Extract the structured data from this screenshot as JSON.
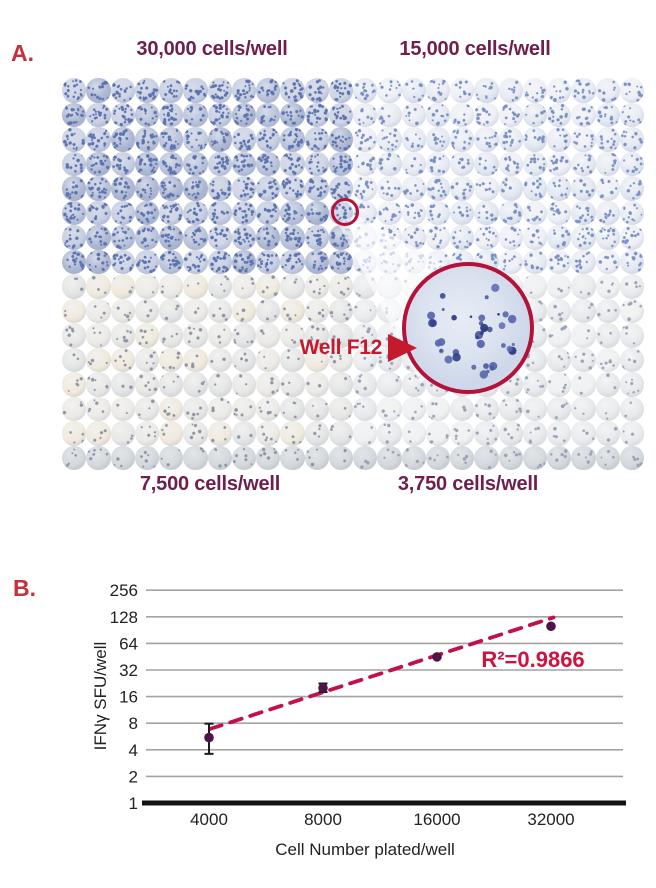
{
  "panel_a": {
    "label": "A.",
    "labels": {
      "top_left": "30,000 cells/well",
      "top_right": "15,000 cells/well",
      "bottom_left": "7,500 cells/well",
      "bottom_right": "3,750 cells/well"
    },
    "inset": {
      "label": "Well F12"
    },
    "plate": {
      "rows": 16,
      "cols": 24,
      "highlight_well": {
        "row_letter": "F",
        "col_number": 12
      },
      "quadrants": {
        "top_left": {
          "base": [
            "#c9d0e2",
            "#bac3da",
            "#d1d6e5",
            "#aeb8d2"
          ],
          "light": "#d6dcea",
          "edge": "#9fabcd",
          "speckle": "#5d73ae",
          "dots_min": 14,
          "dots_max": 22
        },
        "top_right": {
          "base": [
            "#e8ebf2",
            "#eef0f5",
            "#e3e8f1"
          ],
          "light": "#f3f5f9",
          "edge": "#c3cbde",
          "speckle": "#7b90c3",
          "dots_min": 8,
          "dots_max": 14
        },
        "bottom_left": {
          "base": [
            "#e8e8e6",
            "#edebe7",
            "#f1eadd",
            "#e4e5e6"
          ],
          "light": "#f1f1ef",
          "edge": "#c9cbcc",
          "speckle": "#9095a5",
          "dots_min": 2,
          "dots_max": 6
        },
        "bottom_right": {
          "base": [
            "#eaebee",
            "#e7e9ec",
            "#f0f1f2"
          ],
          "light": "#f3f4f5",
          "edge": "#cdd0d4",
          "speckle": "#9aa2b5",
          "dots_min": 2,
          "dots_max": 6
        }
      },
      "last_row": {
        "base": "#d5d9dd",
        "light": "#e2e5e8",
        "edge": "#b6bcc3"
      }
    },
    "colors": {
      "heading": "#6e1f4c",
      "panel_label": "#c5303c",
      "callout_red": "#c41a2e",
      "ring_red": "#b5123b",
      "inset_fill": "#dce3f0",
      "inset_center": "#e7ecf6",
      "spot_palette": [
        "#32418f",
        "#44549f",
        "#5b69ae",
        "#2a3780"
      ]
    }
  },
  "panel_b": {
    "label": "B."
  },
  "chart_data": {
    "type": "scatter",
    "title": "",
    "xlabel": "Cell Number plated/well",
    "ylabel": "IFNγ SFU/well",
    "x_scale": "log2",
    "y_scale": "log2",
    "x_ticks": [
      4000,
      8000,
      16000,
      32000
    ],
    "y_ticks": [
      1,
      2,
      4,
      8,
      16,
      32,
      64,
      128,
      256
    ],
    "xlim": [
      2700,
      50000
    ],
    "ylim": [
      1,
      256
    ],
    "grid": true,
    "legend": false,
    "points": [
      {
        "x": 4000,
        "y": 5.5,
        "err_low": 3.6,
        "err_high": 7.9
      },
      {
        "x": 8000,
        "y": 20,
        "err_low": 18,
        "err_high": 22.5
      },
      {
        "x": 16000,
        "y": 45,
        "err_low": null,
        "err_high": null
      },
      {
        "x": 32000,
        "y": 100,
        "err_low": null,
        "err_high": null
      }
    ],
    "trendline": {
      "style": "dashed",
      "x1": 4030,
      "y1": 6.9,
      "x2": 32500,
      "y2": 126
    },
    "annotation": {
      "text": "R²=0.9866"
    },
    "colors": {
      "point": "#4f1445",
      "error_bar": "#1a1a1a",
      "trend": "#c2104a",
      "annotation": "#ce1340",
      "grid": "#a3a3a3",
      "axis": "#141414",
      "tick_text": "#222222"
    }
  }
}
